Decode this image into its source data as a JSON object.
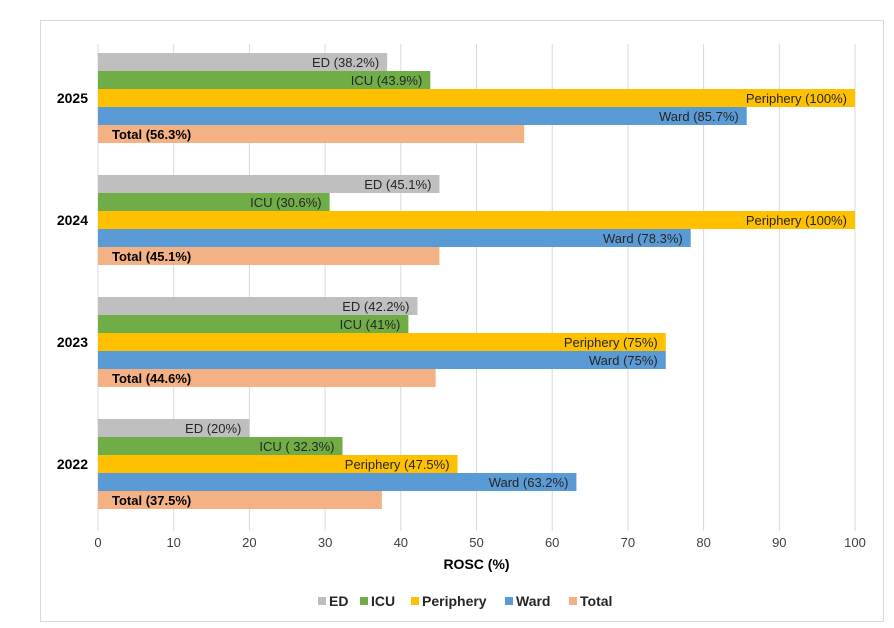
{
  "chart_data": {
    "type": "bar",
    "orientation": "horizontal",
    "categories": [
      "2025",
      "2024",
      "2023",
      "2022"
    ],
    "series": [
      {
        "name": "ED",
        "color": "#bfbfbf",
        "values": [
          38.2,
          45.1,
          42.2,
          20
        ],
        "labels": [
          "ED (38.2%)",
          "ED  (45.1%)",
          "ED (42.2%)",
          "ED (20%)"
        ]
      },
      {
        "name": "ICU",
        "color": "#70ad47",
        "values": [
          43.9,
          30.6,
          41,
          32.3
        ],
        "labels": [
          "ICU (43.9%)",
          "ICU  (30.6%)",
          "ICU (41%)",
          "ICU ( 32.3%)"
        ]
      },
      {
        "name": "Periphery",
        "color": "#ffc000",
        "values": [
          100,
          100,
          75,
          47.5
        ],
        "labels": [
          "Periphery (100%)",
          "Periphery (100%)",
          "Periphery (75%)",
          "Periphery  (47.5%)"
        ]
      },
      {
        "name": "Ward",
        "color": "#5b9bd5",
        "values": [
          85.7,
          78.3,
          75,
          63.2
        ],
        "labels": [
          "Ward (85.7%)",
          "Ward (78.3%)",
          "Ward (75%)",
          "Ward (63.2%)"
        ]
      },
      {
        "name": "Total",
        "color": "#f4b183",
        "values": [
          56.3,
          45.1,
          44.6,
          37.5
        ],
        "labels": [
          "Total (56.3%)",
          "Total (45.1%)",
          "Total (44.6%)",
          "Total (37.5%)"
        ]
      }
    ],
    "xlabel": "ROSC (%)",
    "xlim": [
      0,
      100
    ],
    "xticks": [
      "0",
      "10",
      "20",
      "30",
      "40",
      "50",
      "60",
      "70",
      "80",
      "90",
      "100"
    ],
    "grid": "vertical",
    "legend_position": "bottom"
  }
}
